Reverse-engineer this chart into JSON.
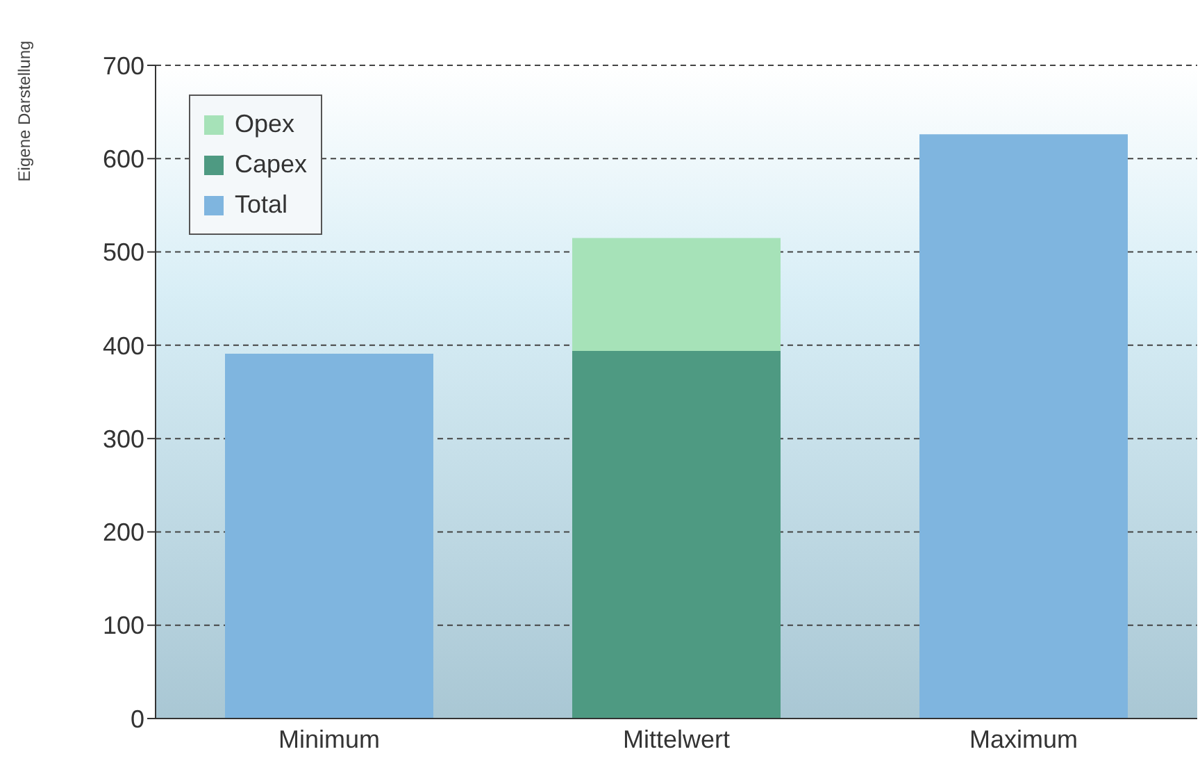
{
  "chart_data": {
    "type": "bar",
    "categories": [
      "Minimum",
      "Mittelwert",
      "Maximum"
    ],
    "series": [
      {
        "name": "Total",
        "color": "#7fb5df",
        "values": [
          391,
          null,
          626
        ]
      },
      {
        "name": "Capex",
        "color": "#4e9a82",
        "values": [
          null,
          394,
          null
        ]
      },
      {
        "name": "Opex",
        "color": "#a6e2b8",
        "values": [
          null,
          121,
          null
        ]
      }
    ],
    "stacked": true,
    "ylim": [
      0,
      700
    ],
    "yticks": [
      0,
      100,
      200,
      300,
      400,
      500,
      600,
      700
    ],
    "grid": "y",
    "legend": "top left",
    "annotations": [
      "Eigene Darstellung"
    ]
  }
}
